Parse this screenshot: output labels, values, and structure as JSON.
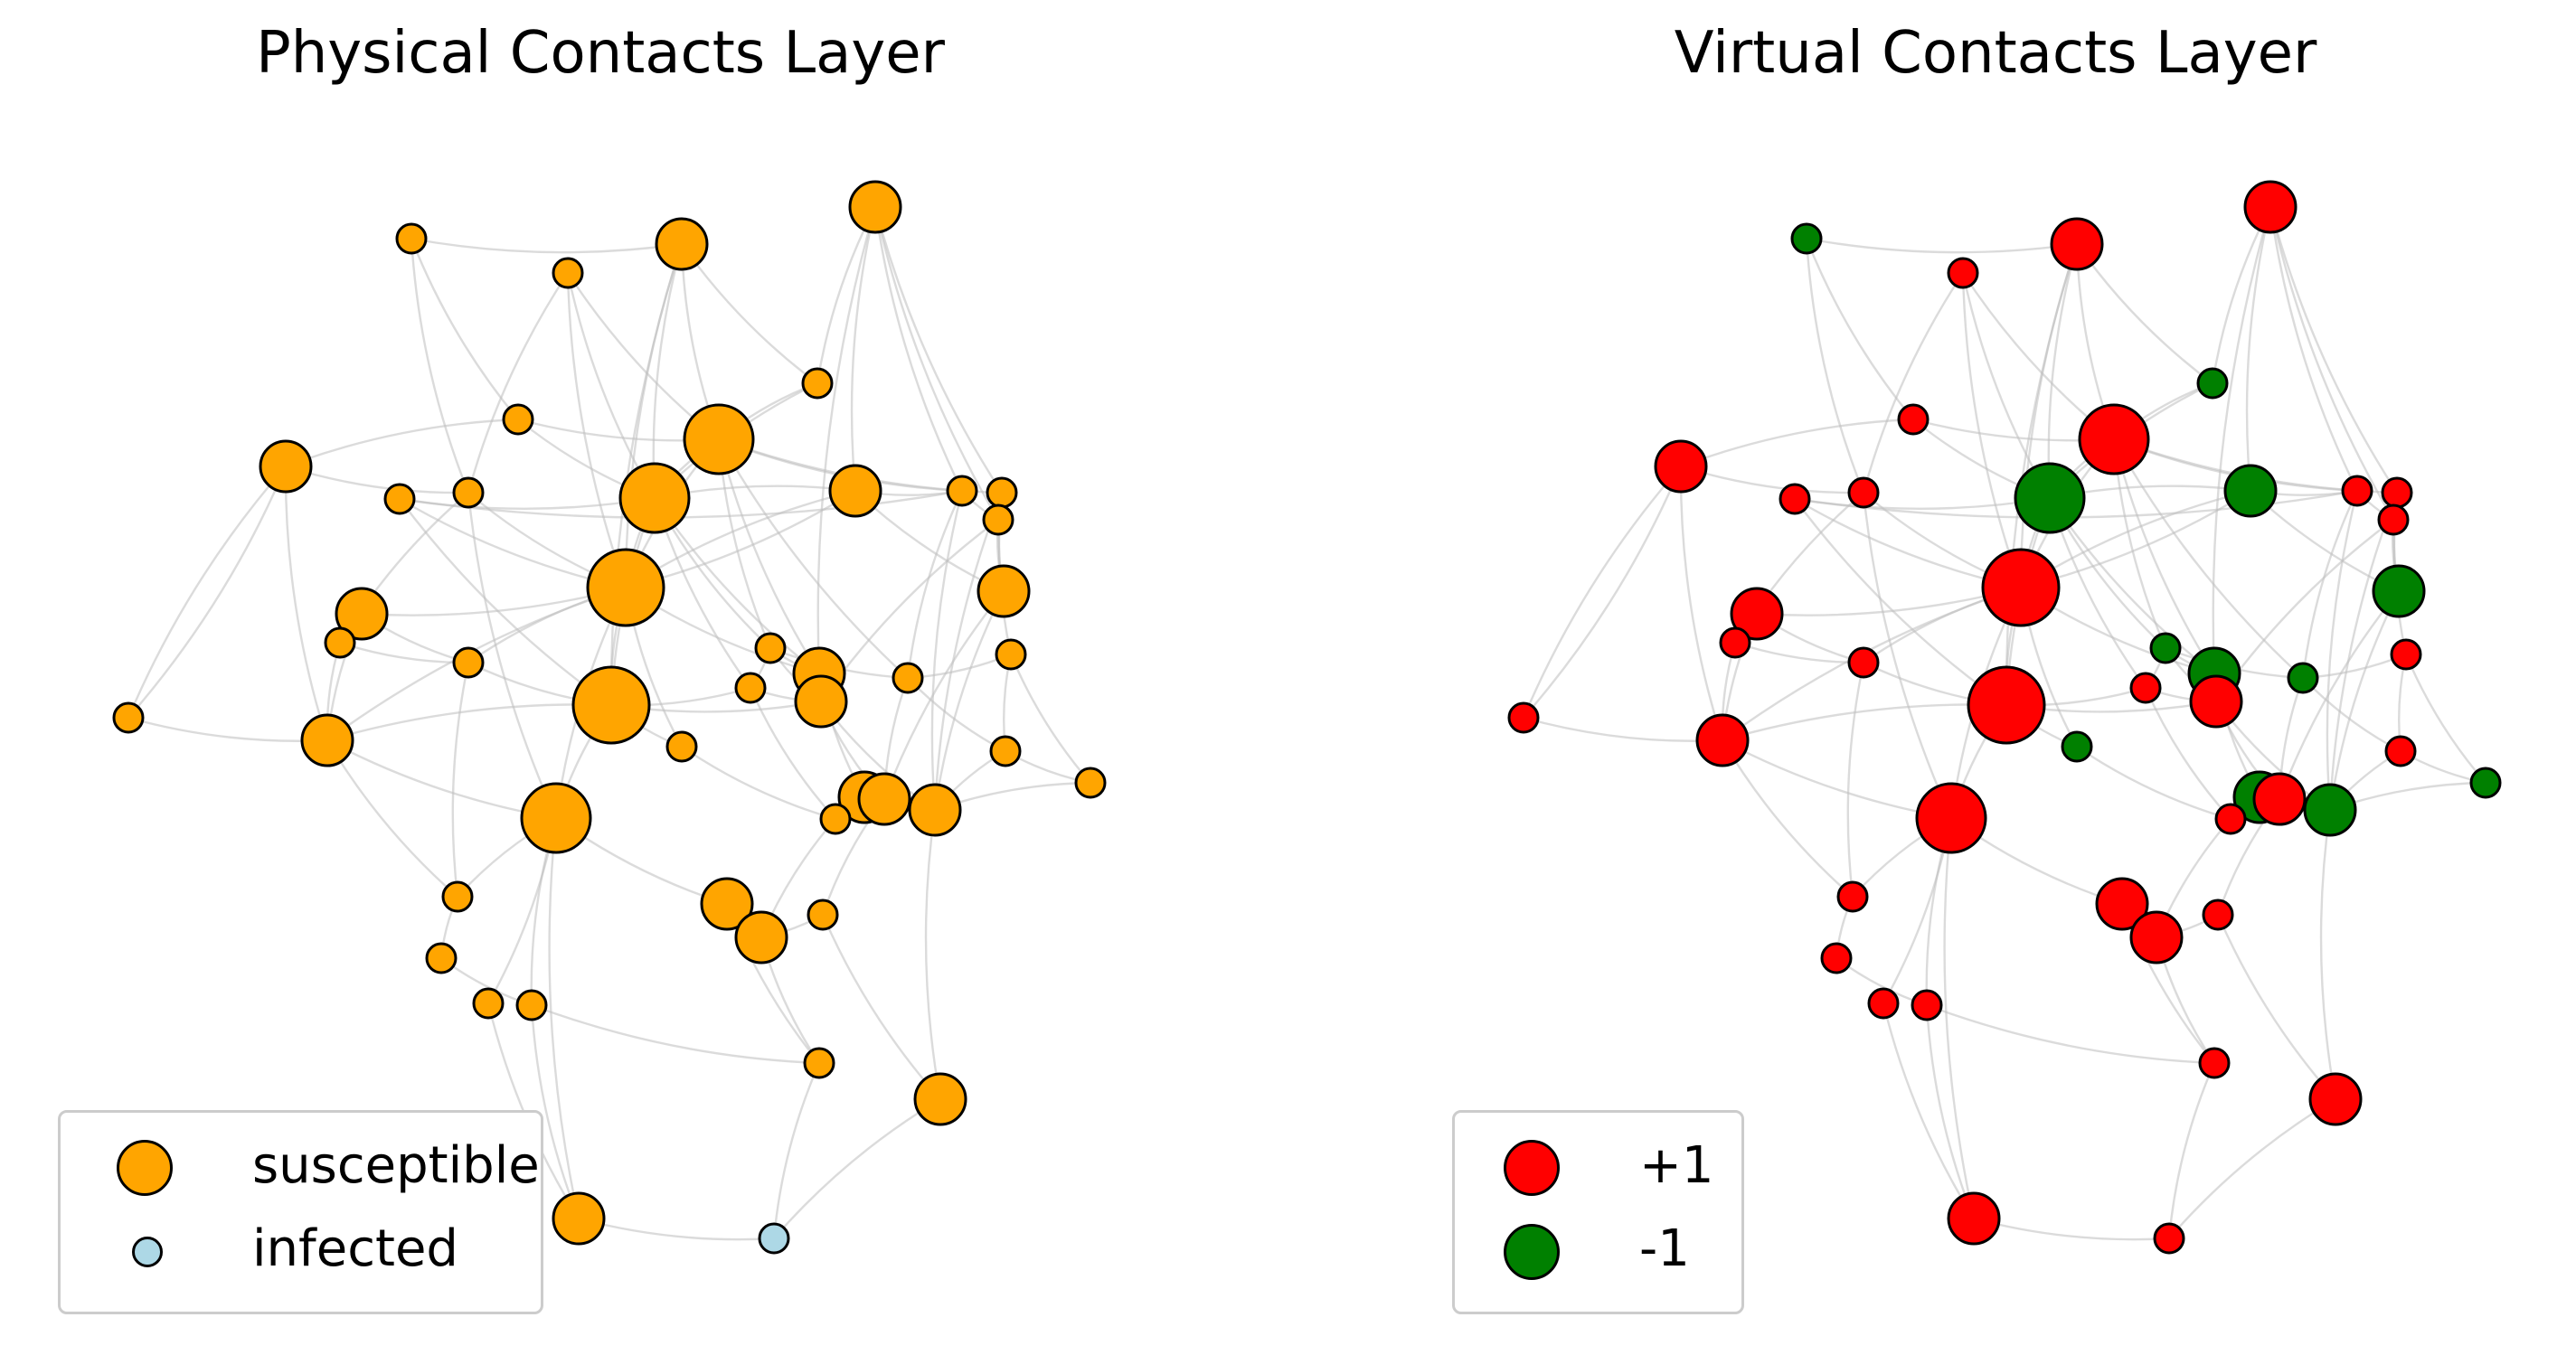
{
  "panels": {
    "left": {
      "title": "Physical Contacts Layer"
    },
    "right": {
      "title": "Virtual Contacts Layer"
    }
  },
  "legend_left": {
    "entries": [
      {
        "label": "susceptible",
        "color": "#FFA500"
      },
      {
        "label": "infected",
        "color": "#ADD8E6"
      }
    ]
  },
  "legend_right": {
    "entries": [
      {
        "label": "+1",
        "color": "#FF0000"
      },
      {
        "label": "-1",
        "color": "#008000"
      }
    ]
  },
  "colors": {
    "susceptible": "#FFA500",
    "infected": "#ADD8E6",
    "plus_one": "#FF0000",
    "minus_one": "#008000",
    "edge": "#bdbdbd",
    "node_outline": "#000000"
  },
  "nodes": [
    {
      "id": 1,
      "physical": "susceptible",
      "virtual": "-1",
      "size": "small"
    },
    {
      "id": 2,
      "physical": "susceptible",
      "virtual": "+1",
      "size": "small"
    },
    {
      "id": 3,
      "physical": "susceptible",
      "virtual": "+1",
      "size": "medium"
    },
    {
      "id": 4,
      "physical": "susceptible",
      "virtual": "+1",
      "size": "medium"
    },
    {
      "id": 5,
      "physical": "susceptible",
      "virtual": "-1",
      "size": "small"
    },
    {
      "id": 6,
      "physical": "susceptible",
      "virtual": "+1",
      "size": "small"
    },
    {
      "id": 7,
      "physical": "susceptible",
      "virtual": "+1",
      "size": "large"
    },
    {
      "id": 8,
      "physical": "susceptible",
      "virtual": "-1",
      "size": "medium"
    },
    {
      "id": 9,
      "physical": "susceptible",
      "virtual": "+1",
      "size": "medium"
    },
    {
      "id": 10,
      "physical": "susceptible",
      "virtual": "+1",
      "size": "small"
    },
    {
      "id": 11,
      "physical": "susceptible",
      "virtual": "-1",
      "size": "large"
    },
    {
      "id": 12,
      "physical": "susceptible",
      "virtual": "+1",
      "size": "small"
    },
    {
      "id": 13,
      "physical": "susceptible",
      "virtual": "+1",
      "size": "small"
    },
    {
      "id": 14,
      "physical": "susceptible",
      "virtual": "+1",
      "size": "small"
    },
    {
      "id": 15,
      "physical": "susceptible",
      "virtual": "+1",
      "size": "small"
    },
    {
      "id": 16,
      "physical": "susceptible",
      "virtual": "+1",
      "size": "xlarge"
    },
    {
      "id": 17,
      "physical": "susceptible",
      "virtual": "+1",
      "size": "medium"
    },
    {
      "id": 18,
      "physical": "susceptible",
      "virtual": "-1",
      "size": "medium"
    },
    {
      "id": 19,
      "physical": "susceptible",
      "virtual": "+1",
      "size": "small"
    },
    {
      "id": 20,
      "physical": "susceptible",
      "virtual": "+1",
      "size": "small"
    },
    {
      "id": 21,
      "physical": "susceptible",
      "virtual": "-1",
      "size": "small"
    },
    {
      "id": 22,
      "physical": "susceptible",
      "virtual": "-1",
      "size": "small"
    },
    {
      "id": 23,
      "physical": "susceptible",
      "virtual": "+1",
      "size": "xlarge"
    },
    {
      "id": 24,
      "physical": "susceptible",
      "virtual": "+1",
      "size": "small"
    },
    {
      "id": 25,
      "physical": "susceptible",
      "virtual": "+1",
      "size": "small"
    },
    {
      "id": 26,
      "physical": "susceptible",
      "virtual": "-1",
      "size": "medium"
    },
    {
      "id": 27,
      "physical": "susceptible",
      "virtual": "+1",
      "size": "medium"
    },
    {
      "id": 28,
      "physical": "susceptible",
      "virtual": "-1",
      "size": "medium"
    },
    {
      "id": 29,
      "physical": "susceptible",
      "virtual": "+1",
      "size": "small"
    },
    {
      "id": 30,
      "physical": "susceptible",
      "virtual": "-1",
      "size": "small"
    },
    {
      "id": 31,
      "physical": "susceptible",
      "virtual": "+1",
      "size": "medium"
    },
    {
      "id": 32,
      "physical": "susceptible",
      "virtual": "+1",
      "size": "small"
    },
    {
      "id": 33,
      "physical": "susceptible",
      "virtual": "-1",
      "size": "small"
    },
    {
      "id": 34,
      "physical": "susceptible",
      "virtual": "+1",
      "size": "large"
    },
    {
      "id": 35,
      "physical": "susceptible",
      "virtual": "+1",
      "size": "small"
    },
    {
      "id": 36,
      "physical": "susceptible",
      "virtual": "+1",
      "size": "medium"
    },
    {
      "id": 37,
      "physical": "susceptible",
      "virtual": "-1",
      "size": "medium"
    },
    {
      "id": 38,
      "physical": "susceptible",
      "virtual": "+1",
      "size": "small"
    },
    {
      "id": 39,
      "physical": "susceptible",
      "virtual": "+1",
      "size": "small"
    },
    {
      "id": 40,
      "physical": "susceptible",
      "virtual": "+1",
      "size": "medium"
    },
    {
      "id": 41,
      "physical": "susceptible",
      "virtual": "+1",
      "size": "medium"
    },
    {
      "id": 42,
      "physical": "susceptible",
      "virtual": "+1",
      "size": "small"
    },
    {
      "id": 43,
      "physical": "susceptible",
      "virtual": "+1",
      "size": "small"
    },
    {
      "id": 44,
      "physical": "susceptible",
      "virtual": "+1",
      "size": "small"
    },
    {
      "id": 45,
      "physical": "susceptible",
      "virtual": "+1",
      "size": "medium"
    },
    {
      "id": 46,
      "physical": "susceptible",
      "virtual": "+1",
      "size": "medium"
    },
    {
      "id": 47,
      "physical": "susceptible",
      "virtual": "+1",
      "size": "small"
    },
    {
      "id": 48,
      "physical": "infected",
      "virtual": "+1",
      "size": "small"
    }
  ]
}
